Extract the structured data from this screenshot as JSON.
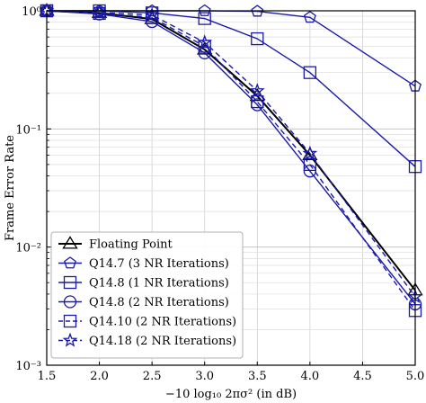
{
  "chart_data": {
    "type": "line",
    "title": "",
    "xlabel": "−10 log₁₀ 2πσ² (in dB)",
    "ylabel": "Frame Error Rate",
    "xlim": [
      1.5,
      5.0
    ],
    "ylim": [
      0.001,
      1
    ],
    "yscale": "log",
    "grid": true,
    "legend_position": "lower-left",
    "x_ticks": [
      "1.5",
      "2.0",
      "2.5",
      "3.0",
      "3.5",
      "4.0",
      "4.5",
      "5.0"
    ],
    "y_ticks": [
      "10⁰",
      "10⁻¹",
      "10⁻²",
      "10⁻³"
    ],
    "x": [
      1.5,
      2.0,
      2.5,
      3.0,
      3.5,
      4.0,
      5.0
    ],
    "series": [
      {
        "name": "Floating Point",
        "values": [
          1.0,
          0.96,
          0.85,
          0.47,
          0.19,
          0.06,
          0.0043
        ],
        "color": "#000000",
        "marker": "triangle",
        "dash": "solid"
      },
      {
        "name": "Q14.7 (3 NR Iterations)",
        "values": [
          1.0,
          1.0,
          1.0,
          1.0,
          0.99,
          0.88,
          0.23
        ],
        "color": "#1a1aa8",
        "marker": "pentagon",
        "dash": "solid"
      },
      {
        "name": "Q14.8 (1 NR Iterations)",
        "values": [
          1.0,
          1.0,
          0.96,
          0.86,
          0.58,
          0.3,
          0.048
        ],
        "color": "#1a1aa8",
        "marker": "square",
        "dash": "solid"
      },
      {
        "name": "Q14.8 (2 NR Iterations)",
        "values": [
          1.0,
          0.94,
          0.81,
          0.44,
          0.16,
          0.044,
          0.0033
        ],
        "color": "#1a1aa8",
        "marker": "circle",
        "dash": "solid"
      },
      {
        "name": "Q14.10 (2 NR Iterations)",
        "values": [
          1.0,
          0.95,
          0.88,
          0.5,
          0.17,
          0.05,
          0.0029
        ],
        "color": "#1a1aa8",
        "marker": "square",
        "dash": "dashed"
      },
      {
        "name": "Q14.18 (2 NR Iterations)",
        "values": [
          1.0,
          0.97,
          0.92,
          0.54,
          0.21,
          0.062,
          0.0038
        ],
        "color": "#1a1aa8",
        "marker": "star",
        "dash": "dashed"
      }
    ]
  }
}
